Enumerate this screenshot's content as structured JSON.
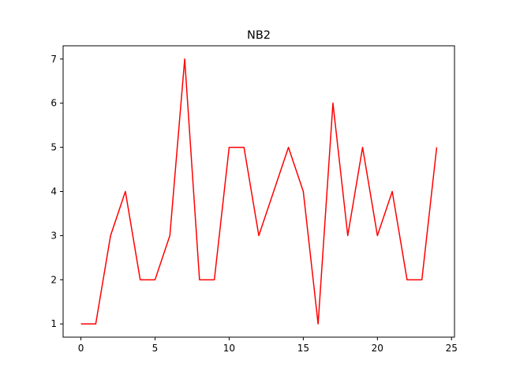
{
  "chart_data": {
    "type": "line",
    "title": "NB2",
    "xlabel": "",
    "ylabel": "",
    "xlim": [
      -1.2,
      25.2
    ],
    "ylim": [
      0.7,
      7.3
    ],
    "xticks": [
      0,
      5,
      10,
      15,
      20,
      25
    ],
    "yticks": [
      1,
      2,
      3,
      4,
      5,
      6,
      7
    ],
    "grid": false,
    "series": [
      {
        "color": "#ff0000",
        "x": [
          0,
          1,
          2,
          3,
          4,
          5,
          6,
          7,
          8,
          9,
          10,
          11,
          12,
          13,
          14,
          15,
          16,
          17,
          18,
          19,
          20,
          21,
          22,
          23,
          24
        ],
        "values": [
          1,
          1,
          3,
          4,
          2,
          2,
          3,
          7,
          2,
          2,
          5,
          5,
          3,
          4,
          5,
          4,
          1,
          6,
          3,
          5,
          3,
          4,
          2,
          2,
          5
        ]
      }
    ]
  }
}
